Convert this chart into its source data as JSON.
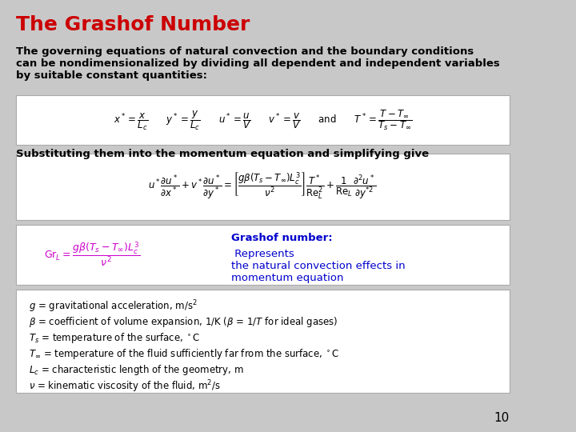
{
  "background_color": "#c8c8c8",
  "title": "The Grashof Number",
  "title_color": "#cc0000",
  "title_fontsize": 18,
  "body_text_1": "The governing equations of natural convection and the boundary conditions\ncan be nondimensionalized by dividing all dependent and independent variables\nby suitable constant quantities:",
  "body_text_2": "Substituting them into the momentum equation and simplifying give",
  "grashof_label": "Grashof number:",
  "grashof_label_color": "#0000cc",
  "grashof_desc_color": "#0000cc",
  "page_number": "10",
  "eq1": "$x^* = \\dfrac{x}{L_c} \\qquad y^* = \\dfrac{y}{L_c} \\qquad u^* = \\dfrac{u}{V} \\qquad v^* = \\dfrac{v}{V} \\qquad \\mathrm{and} \\qquad T^* = \\dfrac{T - T_\\infty}{T_s - T_\\infty}$",
  "eq2": "$u^* \\dfrac{\\partial u^*}{\\partial x^*} + v^* \\dfrac{\\partial u^*}{\\partial y^*} = \\left[\\dfrac{g\\beta(T_s - T_\\infty)L_c^3}{\\nu^2}\\right] \\dfrac{T^*}{\\mathrm{Re}_L^2} + \\dfrac{1}{\\mathrm{Re}_L} \\dfrac{\\partial^2 u^*}{\\partial y^{*2}}$",
  "eq3": "$\\mathrm{Gr}_L = \\dfrac{g\\beta(T_s - T_\\infty)L_c^3}{\\nu^2}$",
  "definitions": [
    "$g$ = gravitational acceleration, m/s$^2$",
    "$\\beta$ = coefficient of volume expansion, 1/K ($\\beta$ = 1/$T$ for ideal gases)",
    "$T_s$ = temperature of the surface, $^\\circ$C",
    "$T_\\infty$ = temperature of the fluid sufficiently far from the surface, $^\\circ$C",
    "$L_c$ = characteristic length of the geometry, m",
    "$\\nu$ = kinematic viscosity of the fluid, m$^2$/s"
  ],
  "box_facecolor": "#ffffff",
  "box_edgecolor": "#aaaaaa",
  "box3_left_color": "#cc00cc"
}
